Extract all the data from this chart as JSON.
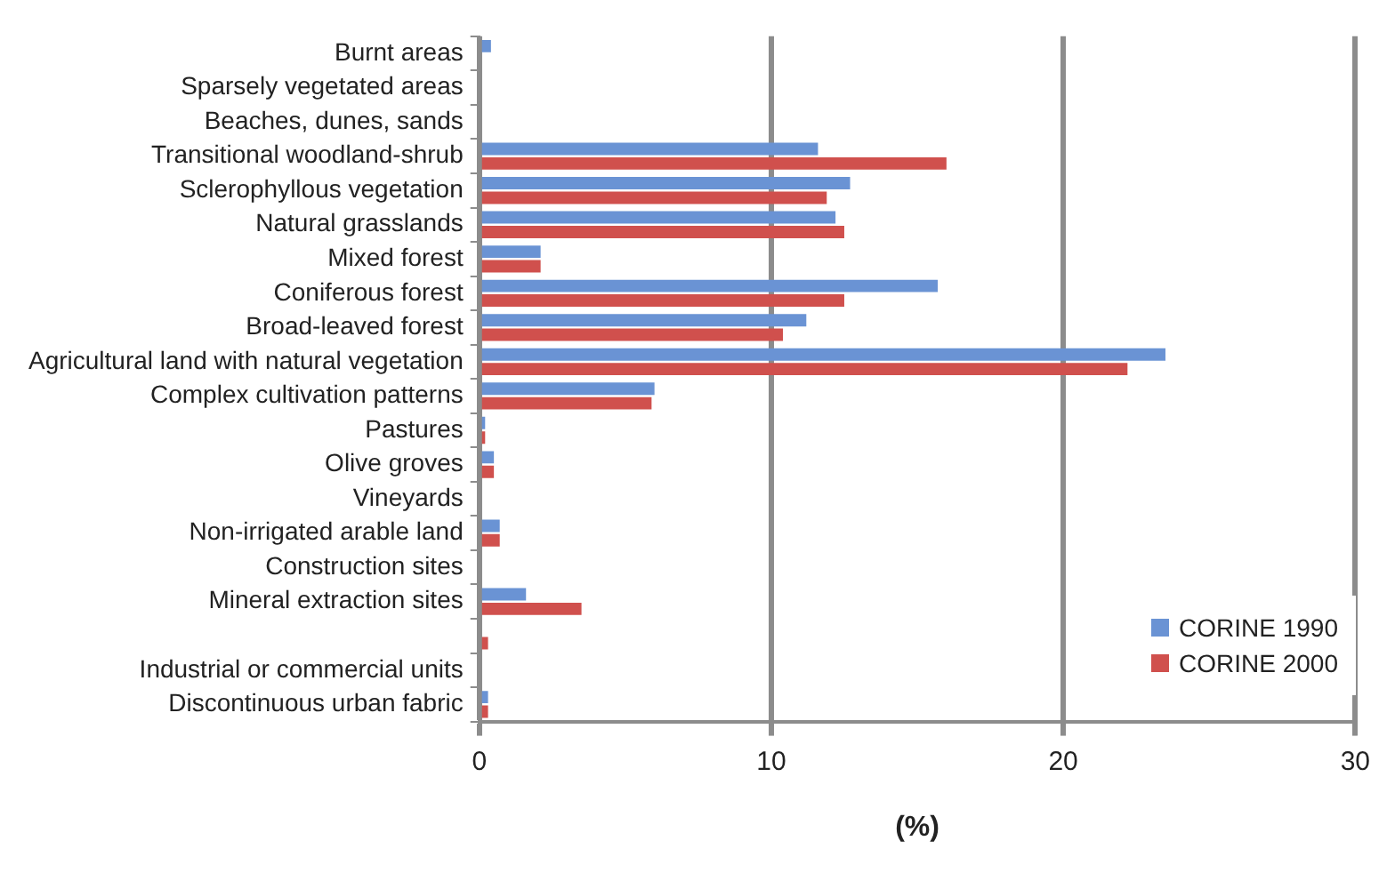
{
  "chart_data": {
    "type": "bar",
    "orientation": "horizontal",
    "xlabel": "(%)",
    "categories": [
      "Burnt areas",
      "Sparsely vegetated areas",
      "Beaches, dunes, sands",
      "Transitional woodland-shrub",
      "Sclerophyllous vegetation",
      "Natural grasslands",
      "Mixed forest",
      "Coniferous forest",
      "Broad-leaved forest",
      "Agricultural land with natural vegetation",
      "Complex cultivation patterns",
      "Pastures",
      "Olive groves",
      "Vineyards",
      "Non-irrigated arable land",
      "Construction sites",
      "Mineral extraction sites",
      null,
      "Industrial or commercial units",
      "Discontinuous urban fabric"
    ],
    "series": [
      {
        "name": "CORINE 1990",
        "color": "#6a93d4",
        "values": [
          0.4,
          0,
          0,
          11.6,
          12.7,
          12.2,
          2.1,
          15.7,
          11.2,
          23.5,
          6.0,
          0.2,
          0.5,
          0,
          0.7,
          0,
          1.6,
          0,
          0,
          0.3
        ]
      },
      {
        "name": "CORINE 2000",
        "color": "#d0504d",
        "values": [
          0,
          0,
          0,
          16.0,
          11.9,
          12.5,
          2.1,
          12.5,
          10.4,
          22.2,
          5.9,
          0.2,
          0.5,
          0,
          0.7,
          0,
          3.5,
          0.3,
          0,
          0.3
        ]
      }
    ],
    "xlim": [
      0,
      30
    ],
    "xticks": [
      0,
      10,
      20,
      30
    ],
    "grid": "x",
    "legend": "bottom right"
  }
}
